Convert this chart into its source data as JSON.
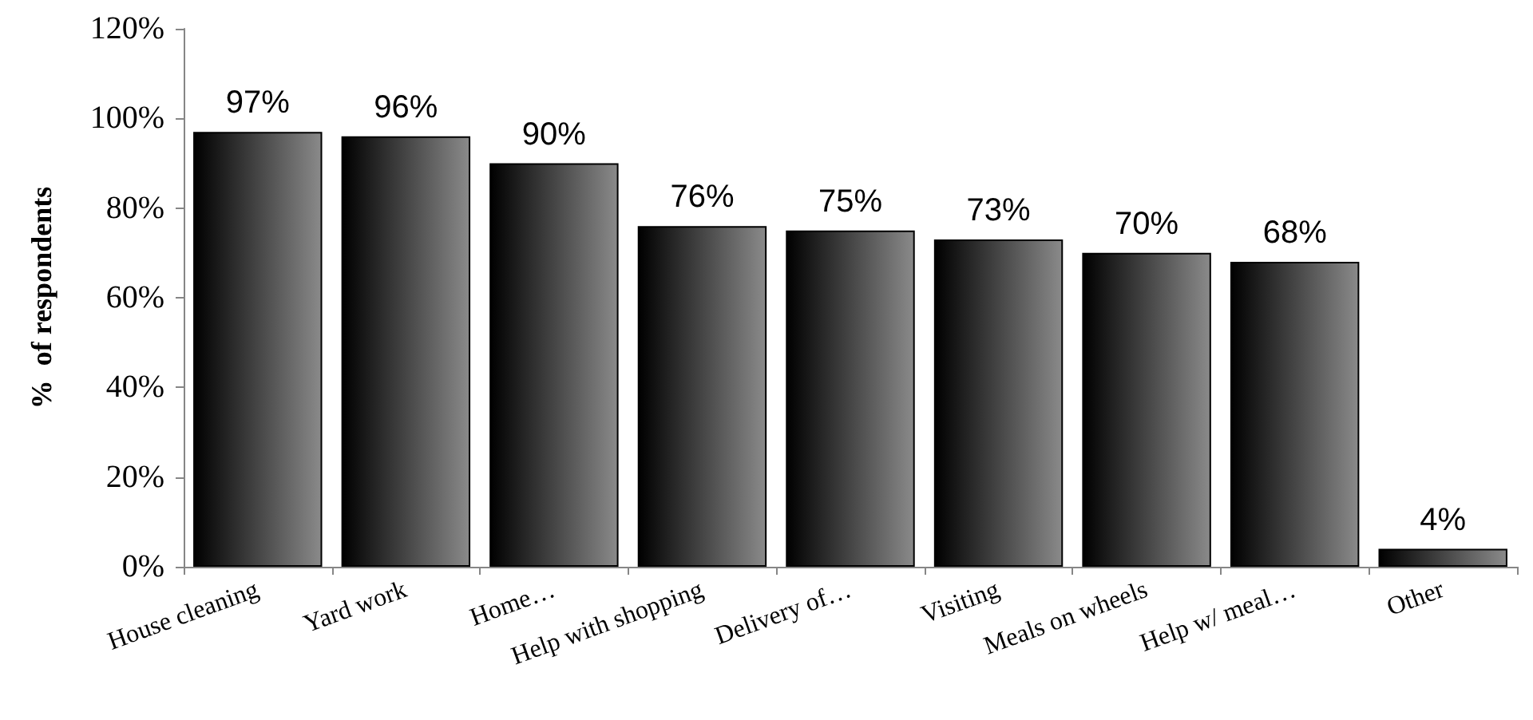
{
  "chart_data": {
    "type": "bar",
    "ylabel": "%  of respondents",
    "categories": [
      "House cleaning",
      "Yard work",
      "Home…",
      "Help with shopping",
      "Delivery of…",
      "Visiting",
      "Meals on wheels",
      "Help w/ meal…",
      "Other"
    ],
    "values": [
      97,
      96,
      90,
      76,
      75,
      73,
      70,
      68,
      4
    ],
    "value_labels": [
      "97%",
      "96%",
      "90%",
      "76%",
      "75%",
      "73%",
      "70%",
      "68%",
      "4%"
    ],
    "color": "#000000",
    "ylim": [
      0,
      120
    ],
    "yticks": [
      {
        "value": 0,
        "label": "0%"
      },
      {
        "value": 20,
        "label": "20%"
      },
      {
        "value": 40,
        "label": "40%"
      },
      {
        "value": 60,
        "label": "60%"
      },
      {
        "value": 80,
        "label": "80%"
      },
      {
        "value": 100,
        "label": "100%"
      },
      {
        "value": 120,
        "label": "120%"
      }
    ],
    "grid": false
  }
}
